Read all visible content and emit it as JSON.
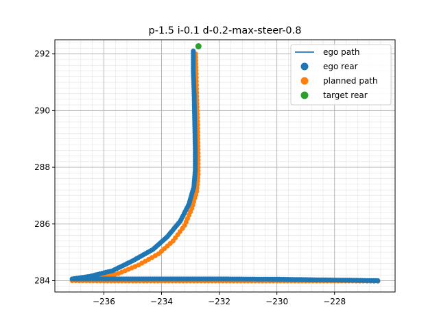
{
  "chart_data": {
    "type": "scatter",
    "title": "p-1.5 i-0.1 d-0.2-max-steer-0.8",
    "xlabel": "",
    "ylabel": "",
    "xlim": [
      -237.7,
      -225.9
    ],
    "ylim": [
      283.6,
      292.5
    ],
    "xticks": [
      -236,
      -234,
      -232,
      -230,
      -228
    ],
    "xtick_labels": [
      "−236",
      "−234",
      "−232",
      "−230",
      "−228"
    ],
    "yticks": [
      284,
      286,
      288,
      290,
      292
    ],
    "ytick_labels": [
      "284",
      "286",
      "288",
      "290",
      "292"
    ],
    "grid": true,
    "minor_grid": true,
    "legend_position": "top-right",
    "colors": {
      "ego_path": "#1f77b4",
      "ego_rear": "#1f77b4",
      "planned_path": "#ff7f0e",
      "target_rear": "#2ca02c"
    },
    "series": [
      {
        "name": "ego path",
        "kind": "line",
        "x": [
          -226.5,
          -228.0,
          -230.0,
          -232.0,
          -234.0,
          -236.0,
          -237.1,
          -236.5,
          -235.7,
          -235.0,
          -234.3,
          -233.8,
          -233.35,
          -233.05,
          -232.88,
          -232.83,
          -232.83,
          -232.85,
          -232.87,
          -232.9,
          -232.9
        ],
        "y": [
          284.0,
          284.02,
          284.05,
          284.06,
          284.06,
          284.06,
          284.06,
          284.15,
          284.35,
          284.7,
          285.1,
          285.55,
          286.1,
          286.7,
          287.3,
          287.9,
          288.6,
          289.6,
          290.6,
          291.4,
          292.1
        ]
      },
      {
        "name": "ego rear",
        "kind": "scatter",
        "x": [
          -226.5,
          -228.0,
          -230.0,
          -232.0,
          -234.0,
          -236.0,
          -237.1,
          -236.5,
          -235.7,
          -235.0,
          -234.3,
          -233.8,
          -233.35,
          -233.05,
          -232.88,
          -232.83,
          -232.83,
          -232.85,
          -232.87,
          -232.9,
          -232.9
        ],
        "y": [
          284.0,
          284.02,
          284.05,
          284.06,
          284.06,
          284.06,
          284.06,
          284.15,
          284.35,
          284.7,
          285.1,
          285.55,
          286.1,
          286.7,
          287.3,
          287.9,
          288.6,
          289.6,
          290.6,
          291.4,
          292.1
        ]
      },
      {
        "name": "planned path",
        "kind": "scatter",
        "x": [
          -226.5,
          -228.0,
          -230.0,
          -232.0,
          -234.0,
          -236.0,
          -237.1,
          -236.3,
          -235.5,
          -234.8,
          -234.1,
          -233.6,
          -233.2,
          -232.95,
          -232.78,
          -232.73,
          -232.73,
          -232.75,
          -232.78,
          -232.8,
          -232.82
        ],
        "y": [
          283.98,
          283.99,
          283.99,
          283.99,
          283.99,
          283.99,
          284.0,
          284.05,
          284.25,
          284.55,
          284.95,
          285.4,
          285.95,
          286.55,
          287.15,
          287.75,
          288.5,
          289.5,
          290.5,
          291.3,
          292.0
        ]
      },
      {
        "name": "target rear",
        "kind": "scatter",
        "x": [
          -232.72
        ],
        "y": [
          292.27
        ]
      }
    ]
  }
}
